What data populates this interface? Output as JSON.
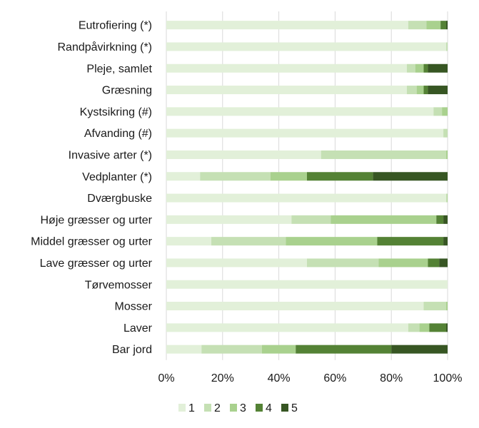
{
  "chart_data": {
    "type": "bar",
    "orientation": "horizontal",
    "stacked": "percent",
    "title": "",
    "xlabel": "",
    "ylabel": "",
    "xlim": [
      0,
      100
    ],
    "x_ticks": [
      "0%",
      "20%",
      "40%",
      "60%",
      "80%",
      "100%"
    ],
    "grid": "vertical",
    "legend_position": "bottom",
    "categories": [
      "Eutrofiering (*)",
      "Randpåvirkning (*)",
      "Pleje, samlet",
      "Græsning",
      "Kystsikring (#)",
      "Afvanding (#)",
      "Invasive arter (*)",
      "Vedplanter (*)",
      "Dværgbuske",
      "Høje græsser og urter",
      "Middel græsser og urter",
      "Lave græsser og urter",
      "Tørvemosser",
      "Mosser",
      "Laver",
      "Bar jord"
    ],
    "series": [
      {
        "name": "1",
        "color": "#e2f0d9",
        "values": [
          86,
          99.5,
          85.5,
          85.5,
          95,
          98.5,
          55,
          12,
          99.5,
          44.5,
          16,
          50,
          100,
          91.5,
          86,
          12.5
        ]
      },
      {
        "name": "2",
        "color": "#c5e0b4",
        "values": [
          6.5,
          0.5,
          3,
          3.5,
          3,
          1.5,
          44.5,
          25,
          0.3,
          14,
          26.5,
          25.5,
          0,
          8,
          4,
          21.5
        ]
      },
      {
        "name": "3",
        "color": "#a9d18e",
        "values": [
          5,
          0,
          3,
          2.5,
          2,
          0,
          0.5,
          13,
          0.2,
          37.5,
          32.5,
          17.5,
          0,
          0.5,
          3.5,
          12
        ]
      },
      {
        "name": "4",
        "color": "#548235",
        "values": [
          2,
          0,
          1.5,
          1.5,
          0,
          0,
          0,
          23.5,
          0,
          2.5,
          23.5,
          4,
          0,
          0,
          6,
          34
        ]
      },
      {
        "name": "5",
        "color": "#375623",
        "values": [
          0.5,
          0,
          7,
          7,
          0,
          0,
          0,
          26.5,
          0,
          1.5,
          1.5,
          3,
          0,
          0,
          0.5,
          20
        ]
      }
    ]
  }
}
